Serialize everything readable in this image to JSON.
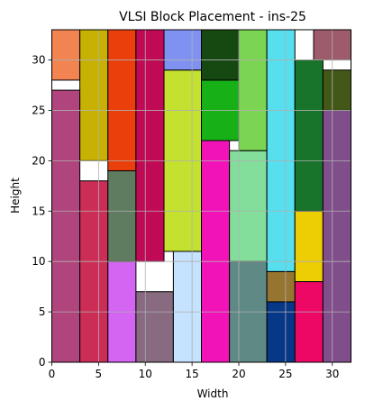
{
  "chart_data": {
    "type": "block-placement",
    "title": "VLSI Block Placement - ins-25",
    "xlabel": "Width",
    "ylabel": "Height",
    "xlim": [
      0,
      32
    ],
    "ylim": [
      0,
      33
    ],
    "xticks": [
      0,
      5,
      10,
      15,
      20,
      25,
      30
    ],
    "yticks": [
      0,
      5,
      10,
      15,
      20,
      25,
      30
    ],
    "grid": true,
    "blocks": [
      {
        "x": 0,
        "y": 0,
        "w": 3,
        "h": 27,
        "color": "#B0447C"
      },
      {
        "x": 0,
        "y": 28,
        "w": 3,
        "h": 5,
        "color": "#F28452"
      },
      {
        "x": 3,
        "y": 0,
        "w": 3,
        "h": 18,
        "color": "#CB2D56"
      },
      {
        "x": 3,
        "y": 20,
        "w": 3,
        "h": 13,
        "color": "#C7B203"
      },
      {
        "x": 6,
        "y": 0,
        "w": 3,
        "h": 10,
        "color": "#D365F2"
      },
      {
        "x": 6,
        "y": 10,
        "w": 3,
        "h": 9,
        "color": "#5F7B60"
      },
      {
        "x": 6,
        "y": 19,
        "w": 3,
        "h": 14,
        "color": "#EB3F0B"
      },
      {
        "x": 9,
        "y": 0,
        "w": 4,
        "h": 7,
        "color": "#886A81"
      },
      {
        "x": 9,
        "y": 10,
        "w": 3,
        "h": 23,
        "color": "#C00A56"
      },
      {
        "x": 13,
        "y": 0,
        "w": 3,
        "h": 11,
        "color": "#C5E3FF"
      },
      {
        "x": 12,
        "y": 11,
        "w": 4,
        "h": 18,
        "color": "#C5E12F"
      },
      {
        "x": 12,
        "y": 29,
        "w": 4,
        "h": 4,
        "color": "#7F92F2"
      },
      {
        "x": 16,
        "y": 0,
        "w": 3,
        "h": 22,
        "color": "#F213B8"
      },
      {
        "x": 16,
        "y": 22,
        "w": 4,
        "h": 6,
        "color": "#17B017"
      },
      {
        "x": 16,
        "y": 28,
        "w": 4,
        "h": 5,
        "color": "#154911"
      },
      {
        "x": 19,
        "y": 0,
        "w": 4,
        "h": 10,
        "color": "#5F8985"
      },
      {
        "x": 19,
        "y": 10,
        "w": 4,
        "h": 11,
        "color": "#83DE9C"
      },
      {
        "x": 20,
        "y": 21,
        "w": 3,
        "h": 12,
        "color": "#7CD453"
      },
      {
        "x": 23,
        "y": 0,
        "w": 3,
        "h": 6,
        "color": "#073787"
      },
      {
        "x": 23,
        "y": 6,
        "w": 3,
        "h": 3,
        "color": "#967530"
      },
      {
        "x": 23,
        "y": 9,
        "w": 3,
        "h": 24,
        "color": "#56DFEE"
      },
      {
        "x": 26,
        "y": 0,
        "w": 3,
        "h": 8,
        "color": "#EE0866"
      },
      {
        "x": 26,
        "y": 8,
        "w": 3,
        "h": 7,
        "color": "#EDCD03"
      },
      {
        "x": 26,
        "y": 15,
        "w": 3,
        "h": 15,
        "color": "#19742B"
      },
      {
        "x": 28,
        "y": 30,
        "w": 4,
        "h": 3,
        "color": "#9E5B6A"
      },
      {
        "x": 29,
        "y": 0,
        "w": 3,
        "h": 25,
        "color": "#814E8C"
      },
      {
        "x": 29,
        "y": 25,
        "w": 3,
        "h": 4,
        "color": "#435817"
      }
    ]
  }
}
